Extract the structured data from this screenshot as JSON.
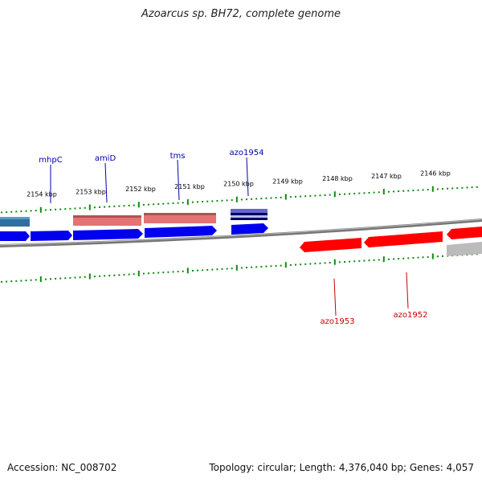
{
  "title": "Azoarcus sp. BH72, complete genome",
  "footer": {
    "accession": "Accession: NC_008702",
    "stats": "Topology: circular; Length: 4,376,040 bp; Genes: 4,057"
  },
  "colors": {
    "forward": "#0000ee",
    "reverse": "#ff0000",
    "pink": "#e57373",
    "teal": "#2f6f9f",
    "grey": "#bbbbbb",
    "tick": "#118811",
    "label_fwd": "#0000aa",
    "label_rev": "#cc0000",
    "backbone": "#777777"
  },
  "scale_labels": [
    "2154 kbp",
    "2153 kbp",
    "2152 kbp",
    "2151 kbp",
    "2150 kbp",
    "2149 kbp",
    "2148 kbp",
    "2147 kbp",
    "2146 kbp"
  ],
  "genes_forward": [
    {
      "name": "mhpC"
    },
    {
      "name": "amiD"
    },
    {
      "name": "tms"
    },
    {
      "name": "azo1954"
    }
  ],
  "genes_reverse": [
    {
      "name": "azo1953"
    },
    {
      "name": "azo1952"
    }
  ]
}
